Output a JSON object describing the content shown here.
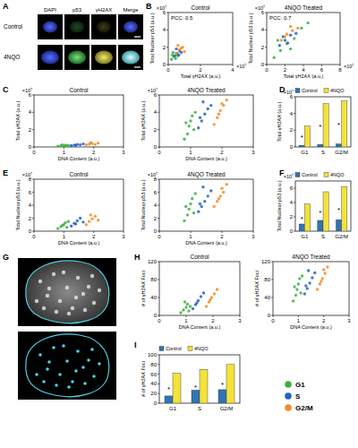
{
  "panel_labels": [
    "A",
    "B",
    "C",
    "D",
    "E",
    "F",
    "G",
    "H",
    "I"
  ],
  "images": {
    "columns": [
      "DAPI",
      "p53",
      "γH2AX",
      "Merge"
    ],
    "rows": [
      "Control",
      "4NQO"
    ]
  },
  "phase_legend": [
    {
      "name": "G1",
      "color": "#3cb044"
    },
    {
      "name": "S",
      "color": "#2262c6"
    },
    {
      "name": "G2/M",
      "color": "#f28c28"
    }
  ],
  "chart_data": [
    {
      "type": "scatter",
      "title": "Control",
      "annotations": [
        "PCC: 0.5"
      ],
      "x_label": "Total γH2AX (a.u.)",
      "y_label": "Total Nuclear p53 (a.u.)",
      "x_scale_label": "×10⁷",
      "y_scale_label": "×10⁷",
      "xlim": [
        0,
        4
      ],
      "xticks": [
        0,
        2,
        4
      ],
      "ylim": [
        0,
        6
      ],
      "yticks": [
        0,
        2,
        4,
        6
      ],
      "series": [
        {
          "x": [
            0.2,
            0.35,
            0.5,
            0.3,
            0.6,
            0.45,
            0.25
          ],
          "values": [
            0.6,
            0.9,
            1.2,
            1.4,
            1.0,
            0.7,
            1.1
          ]
        },
        {
          "x": [
            0.4,
            0.55,
            0.7,
            0.5,
            0.8,
            0.65
          ],
          "values": [
            1.0,
            1.3,
            1.6,
            1.8,
            1.4,
            1.1
          ]
        },
        {
          "x": [
            0.5,
            0.7,
            0.9,
            1.0,
            0.6,
            0.8
          ],
          "values": [
            1.3,
            1.7,
            2.0,
            1.5,
            2.2,
            1.9
          ]
        }
      ]
    },
    {
      "type": "scatter",
      "title": "4NQO Treated",
      "annotations": [
        "PCC: 0.7"
      ],
      "x_label": "Total γH2AX (a.u.)",
      "y_label": "Total Nuclear p53 (a.u.)",
      "x_scale_label": "×10⁷",
      "y_scale_label": "×10⁷",
      "xlim": [
        0,
        8
      ],
      "xticks": [
        0,
        2,
        4,
        6,
        8
      ],
      "ylim": [
        0,
        6
      ],
      "yticks": [
        0,
        2,
        4,
        6
      ],
      "series": [
        {
          "x": [
            0.8,
            1.5,
            2.2,
            3.0,
            3.8,
            2.6,
            1.2,
            4.5
          ],
          "values": [
            0.8,
            1.6,
            2.4,
            3.0,
            4.2,
            1.8,
            2.8,
            4.8
          ]
        },
        {
          "x": [
            1.4,
            2.0,
            2.6,
            3.2,
            2.3,
            1.8
          ],
          "values": [
            2.2,
            2.8,
            3.4,
            3.6,
            2.5,
            3.2
          ]
        },
        {
          "x": [
            1.6,
            2.2,
            2.8,
            3.4,
            2.0,
            2.6
          ],
          "values": [
            2.8,
            3.5,
            3.9,
            4.2,
            3.2,
            4.4
          ]
        }
      ]
    },
    {
      "type": "scatter",
      "title": "Control",
      "x_label": "DNA Content (a.u.)",
      "y_label": "Total γH2AX (a.u.)",
      "y_scale_label": "×10⁷",
      "xlim": [
        0,
        3
      ],
      "xticks": [
        0,
        1,
        2,
        3
      ],
      "ylim": [
        0,
        6
      ],
      "yticks": [
        0,
        2,
        4,
        6
      ],
      "series": [
        {
          "x": [
            0.8,
            0.9,
            1.0,
            1.05,
            1.1,
            0.95,
            1.15
          ],
          "values": [
            0.08,
            0.15,
            0.12,
            0.2,
            0.1,
            0.25,
            0.18
          ]
        },
        {
          "x": [
            1.25,
            1.35,
            1.45,
            1.55,
            1.65,
            1.4
          ],
          "values": [
            0.15,
            0.22,
            0.3,
            0.25,
            0.35,
            0.18
          ]
        },
        {
          "x": [
            1.75,
            1.85,
            1.95,
            2.05,
            2.15,
            1.9
          ],
          "values": [
            0.25,
            0.32,
            0.4,
            0.3,
            0.45,
            0.5
          ]
        }
      ]
    },
    {
      "type": "scatter",
      "title": "4NQO Treated",
      "x_label": "DNA Content (a.u.)",
      "y_label": "Total γH2AX (a.u.)",
      "y_scale_label": "×10⁷",
      "xlim": [
        0,
        3
      ],
      "xticks": [
        0,
        1,
        2,
        3
      ],
      "ylim": [
        0,
        6
      ],
      "yticks": [
        0,
        2,
        4,
        6
      ],
      "series": [
        {
          "x": [
            0.8,
            0.9,
            0.95,
            1.0,
            1.05,
            1.1,
            1.15,
            0.85
          ],
          "values": [
            0.9,
            1.5,
            2.4,
            3.0,
            3.6,
            2.0,
            4.0,
            2.8
          ]
        },
        {
          "x": [
            1.25,
            1.35,
            1.45,
            1.55,
            1.65,
            1.4,
            1.3
          ],
          "values": [
            2.2,
            3.0,
            3.8,
            4.4,
            4.8,
            5.2,
            3.4
          ]
        },
        {
          "x": [
            1.75,
            1.85,
            1.95,
            2.05,
            2.15,
            1.9,
            2.0
          ],
          "values": [
            2.6,
            3.4,
            4.2,
            4.8,
            5.4,
            3.8,
            5.0
          ]
        }
      ]
    },
    {
      "type": "bar",
      "legend": "top",
      "y_label": "Total γH2AX (a.u.)",
      "y_scale_label": "×10⁷",
      "categories": [
        "G1",
        "S",
        "G2/M"
      ],
      "annotations": [
        "*",
        "*",
        "*"
      ],
      "ylim": [
        0,
        6
      ],
      "yticks": [
        0,
        2,
        4,
        6
      ],
      "series": [
        {
          "name": "Control",
          "color": "#2e75b6",
          "values": [
            0.2,
            0.3,
            0.35
          ]
        },
        {
          "name": "4NQO",
          "color": "#f2e23a",
          "values": [
            2.5,
            5.2,
            5.5
          ]
        }
      ]
    },
    {
      "type": "scatter",
      "title": "Control",
      "x_label": "DNA Content (a.u.)",
      "y_label": "Total Nuclear p53 (a.u.)",
      "y_scale_label": "×10⁷",
      "xlim": [
        0,
        3
      ],
      "xticks": [
        0,
        1,
        2,
        3
      ],
      "ylim": [
        0,
        8
      ],
      "yticks": [
        0,
        2,
        4,
        6,
        8
      ],
      "series": [
        {
          "x": [
            0.8,
            0.9,
            1.0,
            1.05,
            1.1,
            0.95,
            1.15
          ],
          "values": [
            0.4,
            0.7,
            1.0,
            1.3,
            0.6,
            0.9,
            1.5
          ]
        },
        {
          "x": [
            1.25,
            1.35,
            1.45,
            1.55,
            1.65,
            1.4
          ],
          "values": [
            0.8,
            1.2,
            1.6,
            2.0,
            1.4,
            1.1
          ]
        },
        {
          "x": [
            1.75,
            1.85,
            1.95,
            2.05,
            2.15,
            1.9
          ],
          "values": [
            1.0,
            1.5,
            1.9,
            2.3,
            1.7,
            2.5
          ]
        }
      ]
    },
    {
      "type": "scatter",
      "title": "4NQO Treated",
      "x_label": "DNA Content (a.u.)",
      "y_label": "Total Nuclear p53 (a.u.)",
      "y_scale_label": "×10⁷",
      "xlim": [
        0,
        3
      ],
      "xticks": [
        0,
        1,
        2,
        3
      ],
      "ylim": [
        0,
        8
      ],
      "yticks": [
        0,
        2,
        4,
        6,
        8
      ],
      "series": [
        {
          "x": [
            0.8,
            0.9,
            0.95,
            1.0,
            1.05,
            1.1,
            1.15,
            0.85
          ],
          "values": [
            1.6,
            2.5,
            3.4,
            4.2,
            5.0,
            2.8,
            5.8,
            3.8
          ]
        },
        {
          "x": [
            1.25,
            1.35,
            1.45,
            1.55,
            1.65,
            1.4,
            1.3
          ],
          "values": [
            3.0,
            3.8,
            4.6,
            5.4,
            6.2,
            6.8,
            4.2
          ]
        },
        {
          "x": [
            1.75,
            1.85,
            1.95,
            2.05,
            2.15,
            1.9,
            2.0
          ],
          "values": [
            3.8,
            4.6,
            5.4,
            6.0,
            7.2,
            5.0,
            6.6
          ]
        }
      ]
    },
    {
      "type": "bar",
      "legend": "top",
      "y_label": "Total Nuclear p53 (a.u.)",
      "y_scale_label": "×10⁷",
      "categories": [
        "G1",
        "S",
        "G2/M"
      ],
      "annotations": [
        "*",
        "*",
        "*"
      ],
      "ylim": [
        0,
        7
      ],
      "yticks": [
        0,
        2,
        4,
        6
      ],
      "series": [
        {
          "name": "Control",
          "color": "#2e75b6",
          "values": [
            1.0,
            1.5,
            1.6
          ]
        },
        {
          "name": "4NQO",
          "color": "#f2e23a",
          "values": [
            3.8,
            5.5,
            6.2
          ]
        }
      ]
    },
    {
      "type": "scatter",
      "title": "Control",
      "x_label": "DNA Content (a.u.)",
      "y_label": "# of γH2AX Foci",
      "xlim": [
        0,
        3
      ],
      "xticks": [
        0,
        1,
        2,
        3
      ],
      "ylim": [
        0,
        120
      ],
      "yticks": [
        0,
        40,
        80,
        120
      ],
      "series": [
        {
          "x": [
            0.8,
            0.9,
            1.0,
            1.05,
            1.1,
            0.95,
            1.15
          ],
          "values": [
            6,
            12,
            18,
            25,
            10,
            30,
            20
          ]
        },
        {
          "x": [
            1.25,
            1.35,
            1.45,
            1.55,
            1.65,
            1.4
          ],
          "values": [
            15,
            24,
            33,
            42,
            50,
            28
          ]
        },
        {
          "x": [
            1.75,
            1.85,
            1.95,
            2.05,
            2.15,
            1.9
          ],
          "values": [
            20,
            30,
            40,
            48,
            58,
            35
          ]
        }
      ]
    },
    {
      "type": "scatter",
      "title": "4NQO Treated",
      "x_label": "DNA Content (a.u.)",
      "y_label": "# of γH2AX Foci",
      "xlim": [
        0,
        3
      ],
      "xticks": [
        0,
        1,
        2,
        3
      ],
      "ylim": [
        0,
        120
      ],
      "yticks": [
        0,
        40,
        80,
        120
      ],
      "series": [
        {
          "x": [
            0.8,
            0.9,
            0.95,
            1.0,
            1.05,
            1.1,
            1.15,
            0.85
          ],
          "values": [
            32,
            45,
            58,
            70,
            82,
            50,
            88,
            64
          ]
        },
        {
          "x": [
            1.25,
            1.35,
            1.45,
            1.55,
            1.65,
            1.4,
            1.3
          ],
          "values": [
            48,
            60,
            72,
            84,
            95,
            100,
            66
          ]
        },
        {
          "x": [
            1.75,
            1.85,
            1.95,
            2.05,
            2.15,
            1.9,
            2.0
          ],
          "values": [
            58,
            70,
            82,
            94,
            108,
            76,
            102
          ]
        }
      ]
    },
    {
      "type": "bar",
      "legend": "top",
      "y_label": "# of γH2AX Foci",
      "categories": [
        "G1",
        "S",
        "G2/M"
      ],
      "annotations": [
        "*",
        "*",
        "*"
      ],
      "ylim": [
        0,
        100
      ],
      "yticks": [
        0,
        20,
        40,
        60,
        80,
        100
      ],
      "series": [
        {
          "name": "Control",
          "color": "#2e75b6",
          "values": [
            15,
            27,
            28
          ]
        },
        {
          "name": "4NQO",
          "color": "#f2e23a",
          "values": [
            62,
            70,
            80
          ]
        }
      ]
    }
  ]
}
